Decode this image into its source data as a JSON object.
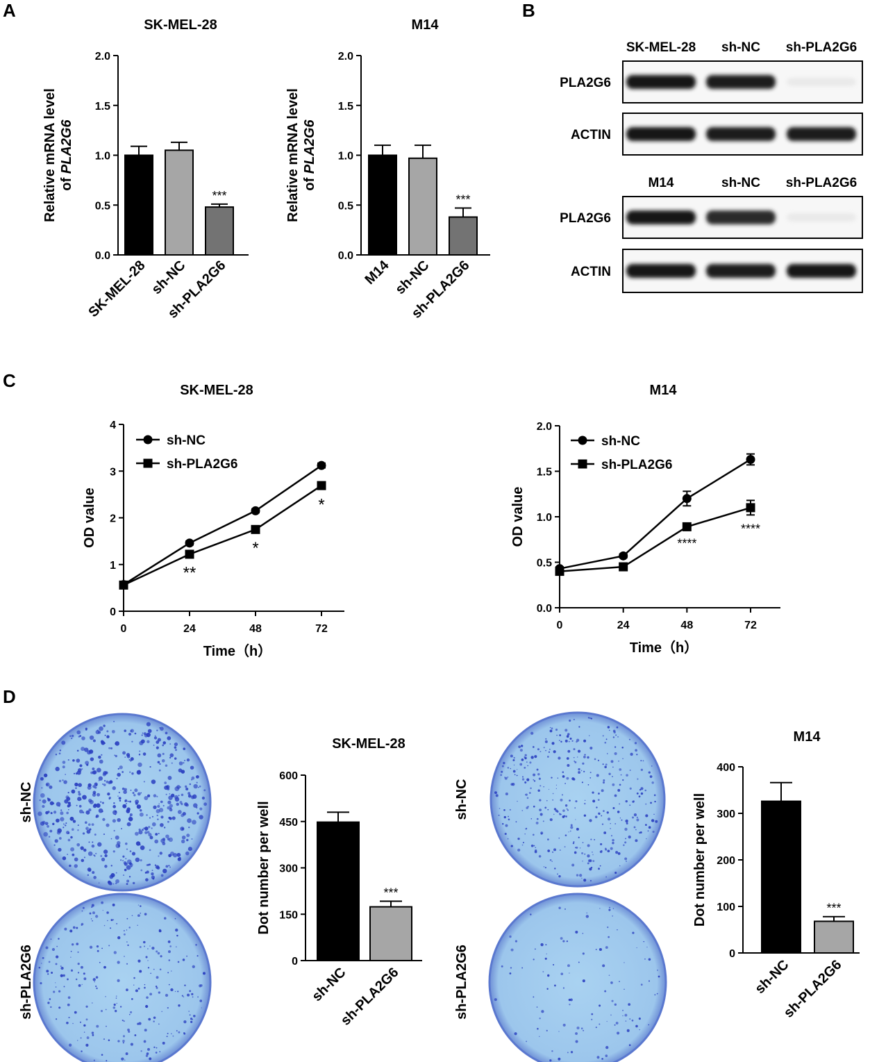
{
  "panels": {
    "A": "A",
    "B": "B",
    "C": "C",
    "D": "D"
  },
  "chart_data": [
    {
      "id": "A1",
      "type": "bar",
      "title": "SK-MEL-28",
      "ylabel_lines": [
        "Relative mRNA level",
        "of ",
        "PLA2G6"
      ],
      "categories": [
        "SK-MEL-28",
        "sh-NC",
        "sh-PLA2G6"
      ],
      "values": [
        1.0,
        1.05,
        0.48
      ],
      "errors": [
        0.09,
        0.08,
        0.03
      ],
      "colors": [
        "#000000",
        "#a6a6a6",
        "#737373"
      ],
      "sig": [
        "",
        "",
        "***"
      ],
      "ylim": [
        0,
        2.0
      ],
      "yticks": [
        "0.0",
        "0.5",
        "1.0",
        "1.5",
        "2.0"
      ]
    },
    {
      "id": "A2",
      "type": "bar",
      "title": "M14",
      "ylabel_lines": [
        "Relative mRNA level",
        "of ",
        "PLA2G6"
      ],
      "categories": [
        "M14",
        "sh-NC",
        "sh-PLA2G6"
      ],
      "values": [
        1.0,
        0.97,
        0.38
      ],
      "errors": [
        0.1,
        0.13,
        0.09
      ],
      "colors": [
        "#000000",
        "#a6a6a6",
        "#737373"
      ],
      "sig": [
        "",
        "",
        "***"
      ],
      "ylim": [
        0,
        2.0
      ],
      "yticks": [
        "0.0",
        "0.5",
        "1.0",
        "1.5",
        "2.0"
      ]
    },
    {
      "id": "C1",
      "type": "line",
      "title": "SK-MEL-28",
      "xlabel": "Time（h）",
      "ylabel": "OD value",
      "x": [
        0,
        24,
        48,
        72
      ],
      "xticks": [
        "0",
        "24",
        "48",
        "72"
      ],
      "ylim": [
        0,
        4
      ],
      "yticks": [
        "0",
        "1",
        "2",
        "3",
        "4"
      ],
      "series": [
        {
          "name": "sh-NC",
          "marker": "circle",
          "values": [
            0.57,
            1.46,
            2.15,
            3.12
          ],
          "errors": [
            0.03,
            0.04,
            0.04,
            0.05
          ]
        },
        {
          "name": "sh-PLA2G6",
          "marker": "square",
          "values": [
            0.56,
            1.22,
            1.75,
            2.69
          ],
          "errors": [
            0.03,
            0.04,
            0.04,
            0.05
          ]
        }
      ],
      "sig": [
        "",
        "**",
        "*",
        "*"
      ],
      "legend": "top-left"
    },
    {
      "id": "C2",
      "type": "line",
      "title": "M14",
      "xlabel": "Time（h）",
      "ylabel": "OD value",
      "x": [
        0,
        24,
        48,
        72
      ],
      "xticks": [
        "0",
        "24",
        "48",
        "72"
      ],
      "ylim": [
        0,
        2.0
      ],
      "yticks": [
        "0.0",
        "0.5",
        "1.0",
        "1.5",
        "2.0"
      ],
      "series": [
        {
          "name": "sh-NC",
          "marker": "circle",
          "values": [
            0.43,
            0.57,
            1.2,
            1.63
          ],
          "errors": [
            0.02,
            0.02,
            0.08,
            0.06
          ]
        },
        {
          "name": "sh-PLA2G6",
          "marker": "square",
          "values": [
            0.4,
            0.45,
            0.89,
            1.1
          ],
          "errors": [
            0.02,
            0.02,
            0.03,
            0.08
          ]
        }
      ],
      "sig": [
        "",
        "",
        "****",
        "****"
      ],
      "legend": "top-left"
    },
    {
      "id": "D1",
      "type": "bar",
      "title": "SK-MEL-28",
      "ylabel": "Dot number per well",
      "categories": [
        "sh-NC",
        "sh-PLA2G6"
      ],
      "values": [
        448,
        174
      ],
      "errors": [
        32,
        18
      ],
      "colors": [
        "#000000",
        "#a6a6a6"
      ],
      "sig": [
        "",
        "***"
      ],
      "ylim": [
        0,
        600
      ],
      "yticks": [
        "0",
        "150",
        "300",
        "450",
        "600"
      ]
    },
    {
      "id": "D2",
      "type": "bar",
      "title": "M14",
      "ylabel": "Dot number per well",
      "categories": [
        "sh-NC",
        "sh-PLA2G6"
      ],
      "values": [
        326,
        68
      ],
      "errors": [
        40,
        10
      ],
      "colors": [
        "#000000",
        "#a6a6a6"
      ],
      "sig": [
        "",
        "***"
      ],
      "ylim": [
        0,
        400
      ],
      "yticks": [
        "0",
        "100",
        "200",
        "300",
        "400"
      ]
    }
  ],
  "western_blot": {
    "groups": [
      {
        "lanes": [
          "SK-MEL-28",
          "sh-NC",
          "sh-PLA2G6"
        ],
        "bands": [
          "PLA2G6",
          "ACTIN"
        ],
        "intensity": {
          "PLA2G6": [
            1.0,
            0.95,
            0.05
          ],
          "ACTIN": [
            1.0,
            0.95,
            0.95
          ]
        }
      },
      {
        "lanes": [
          "M14",
          "sh-NC",
          "sh-PLA2G6"
        ],
        "bands": [
          "PLA2G6",
          "ACTIN"
        ],
        "intensity": {
          "PLA2G6": [
            1.0,
            0.9,
            0.05
          ],
          "ACTIN": [
            1.0,
            0.95,
            1.0
          ]
        }
      }
    ]
  },
  "colony_plates": {
    "labels": [
      "sh-NC",
      "sh-PLA2G6"
    ],
    "plate_color": "#9fc8ec",
    "colony_color": "#2a3fc0"
  }
}
